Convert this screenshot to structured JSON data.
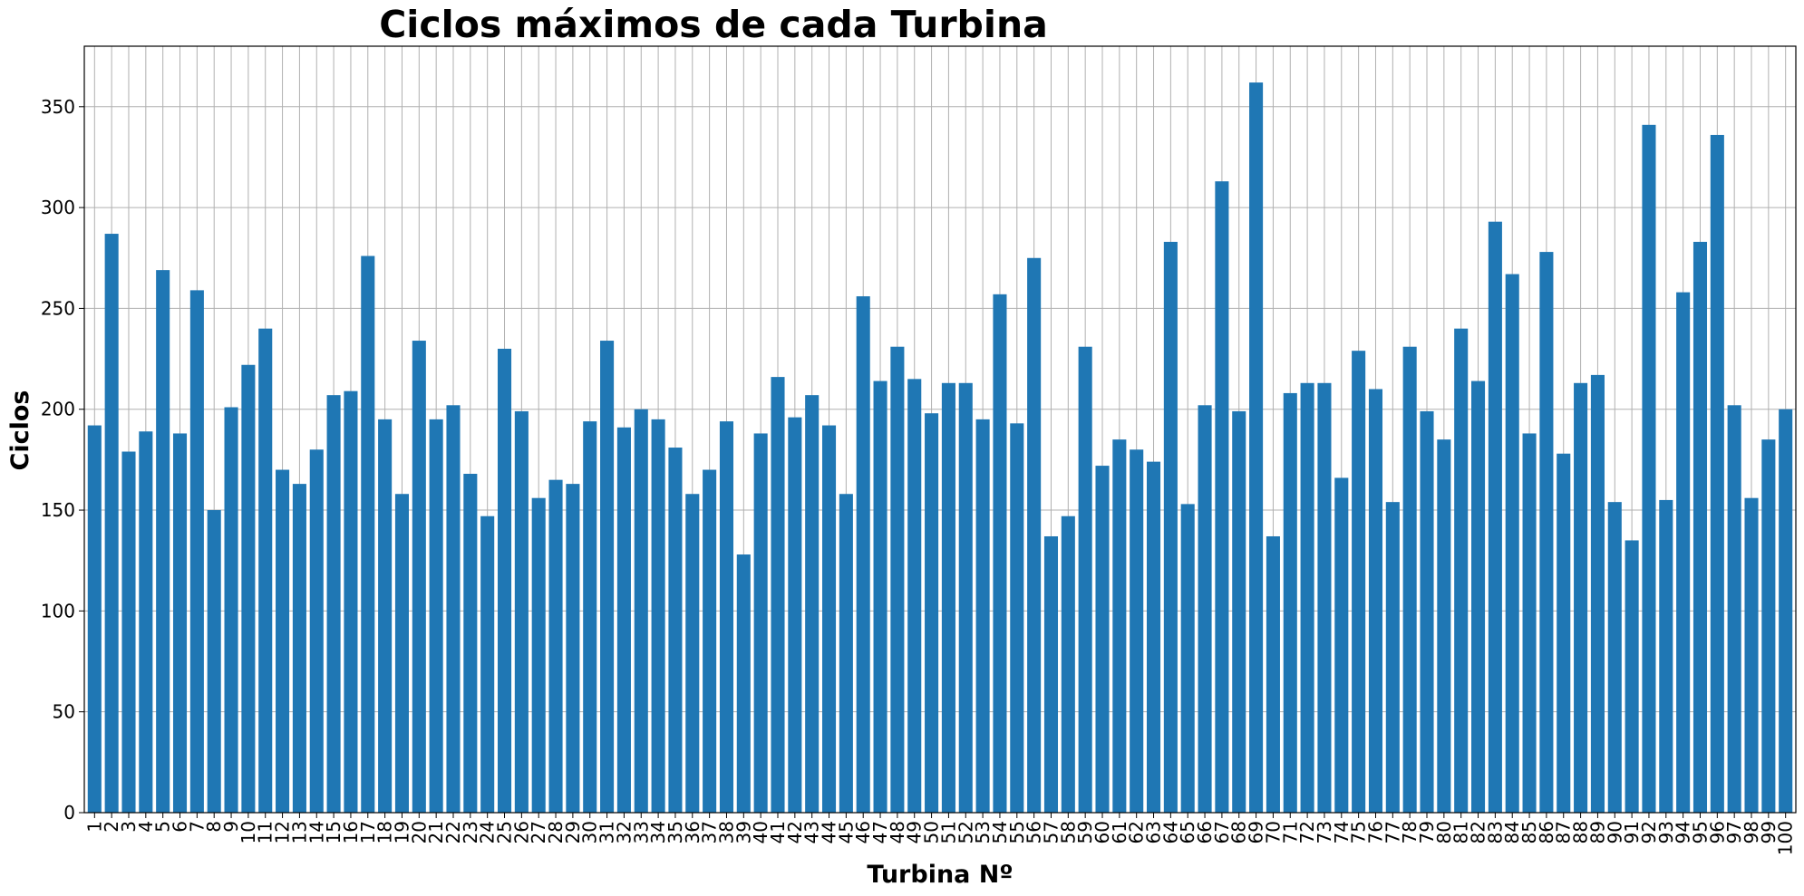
{
  "chart_data": {
    "type": "bar",
    "title": "Ciclos máximos de cada Turbina",
    "xlabel": "Turbina Nº",
    "ylabel": "Ciclos",
    "ylim": [
      0,
      380
    ],
    "yticks": [
      0,
      50,
      100,
      150,
      200,
      250,
      300,
      350
    ],
    "grid": true,
    "bar_color": "#1f77b4",
    "categories": [
      "1",
      "2",
      "3",
      "4",
      "5",
      "6",
      "7",
      "8",
      "9",
      "10",
      "11",
      "12",
      "13",
      "14",
      "15",
      "16",
      "17",
      "18",
      "19",
      "20",
      "21",
      "22",
      "23",
      "24",
      "25",
      "26",
      "27",
      "28",
      "29",
      "30",
      "31",
      "32",
      "33",
      "34",
      "35",
      "36",
      "37",
      "38",
      "39",
      "40",
      "41",
      "42",
      "43",
      "44",
      "45",
      "46",
      "47",
      "48",
      "49",
      "50",
      "51",
      "52",
      "53",
      "54",
      "55",
      "56",
      "57",
      "58",
      "59",
      "60",
      "61",
      "62",
      "63",
      "64",
      "65",
      "66",
      "67",
      "68",
      "69",
      "70",
      "71",
      "72",
      "73",
      "74",
      "75",
      "76",
      "77",
      "78",
      "79",
      "80",
      "81",
      "82",
      "83",
      "84",
      "85",
      "86",
      "87",
      "88",
      "89",
      "90",
      "91",
      "92",
      "93",
      "94",
      "95",
      "96",
      "97",
      "98",
      "99",
      "100"
    ],
    "values": [
      192,
      287,
      179,
      189,
      269,
      188,
      259,
      150,
      201,
      222,
      240,
      170,
      163,
      180,
      207,
      209,
      276,
      195,
      158,
      234,
      195,
      202,
      168,
      147,
      230,
      199,
      156,
      165,
      163,
      194,
      234,
      191,
      200,
      195,
      181,
      158,
      170,
      194,
      128,
      188,
      216,
      196,
      207,
      192,
      158,
      256,
      214,
      231,
      215,
      198,
      213,
      213,
      195,
      257,
      193,
      275,
      137,
      147,
      231,
      172,
      185,
      180,
      174,
      283,
      153,
      202,
      313,
      199,
      362,
      137,
      208,
      213,
      213,
      166,
      229,
      210,
      154,
      231,
      199,
      185,
      240,
      214,
      293,
      267,
      188,
      278,
      178,
      213,
      217,
      154,
      135,
      341,
      155,
      258,
      283,
      336,
      202,
      156,
      185,
      200
    ]
  }
}
